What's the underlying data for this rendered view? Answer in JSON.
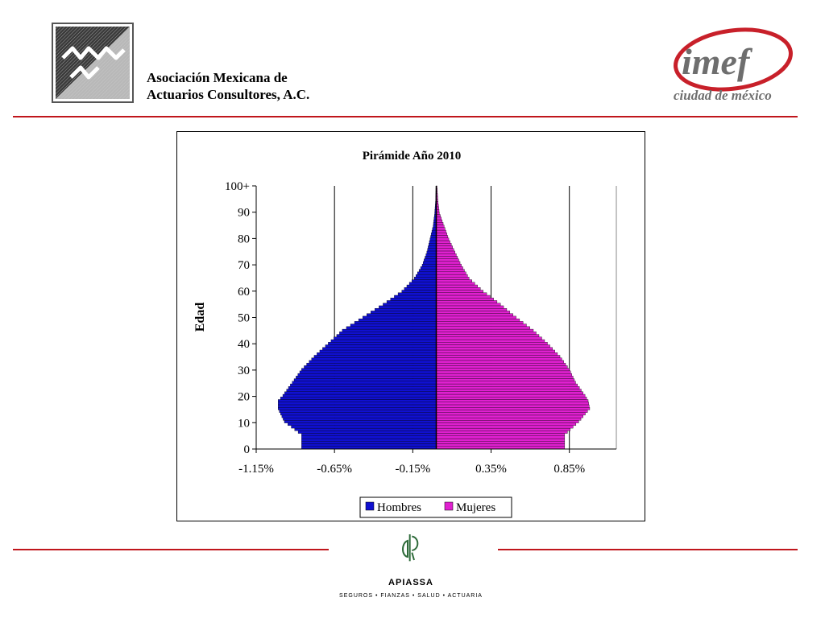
{
  "header": {
    "org_name_line1": "Asociación Mexicana de",
    "org_name_line2": "Actuarios Consultores, A.C.",
    "imef_logo_text": "imef",
    "imef_logo_subtitle": "ciudad de méxico"
  },
  "footer": {
    "logo_name": "APIASSA",
    "tagline": "SEGUROS  •  FIANZAS  •  SALUD  •  ACTUARIA"
  },
  "colors": {
    "accent_rule": "#c0161c",
    "male": "#1010d0",
    "female": "#e020d0",
    "imef_red": "#c8202a",
    "imef_gray": "#6e6e6e",
    "apiassa_green": "#2e6b3a"
  },
  "chart_data": {
    "type": "bar",
    "orientation": "horizontal",
    "title": "Pirámide Año 2010",
    "ylabel": "Edad",
    "xlabel": "",
    "x_ticks": [
      "-1.15%",
      "-0.65%",
      "-0.15%",
      "0.35%",
      "0.85%"
    ],
    "x_tick_values": [
      -1.15,
      -0.65,
      -0.15,
      0.35,
      0.85
    ],
    "xlim": [
      -1.15,
      1.15
    ],
    "y_ticks": [
      "0",
      "10",
      "20",
      "30",
      "40",
      "50",
      "60",
      "70",
      "80",
      "90",
      "100+"
    ],
    "ylim": [
      0,
      100
    ],
    "grid": "vertical",
    "legend_position": "bottom",
    "series": [
      {
        "name": "Hombres",
        "color": "#1010d0",
        "age_points": [
          0,
          5,
          10,
          15,
          18,
          20,
          25,
          30,
          35,
          40,
          45,
          50,
          55,
          60,
          65,
          70,
          75,
          80,
          85,
          90,
          95,
          100
        ],
        "values": [
          -0.86,
          -0.86,
          -0.97,
          -1.01,
          -1.01,
          -0.98,
          -0.92,
          -0.86,
          -0.78,
          -0.69,
          -0.6,
          -0.47,
          -0.34,
          -0.22,
          -0.14,
          -0.09,
          -0.06,
          -0.04,
          -0.02,
          -0.01,
          -0.004,
          -0.002
        ]
      },
      {
        "name": "Mujeres",
        "color": "#e020d0",
        "age_points": [
          0,
          5,
          10,
          15,
          18,
          20,
          25,
          30,
          35,
          40,
          45,
          50,
          55,
          60,
          65,
          70,
          75,
          80,
          85,
          90,
          95,
          100
        ],
        "values": [
          0.82,
          0.82,
          0.91,
          0.98,
          0.97,
          0.95,
          0.89,
          0.85,
          0.79,
          0.71,
          0.62,
          0.51,
          0.41,
          0.3,
          0.21,
          0.16,
          0.12,
          0.08,
          0.05,
          0.02,
          0.01,
          0.005
        ]
      }
    ]
  }
}
